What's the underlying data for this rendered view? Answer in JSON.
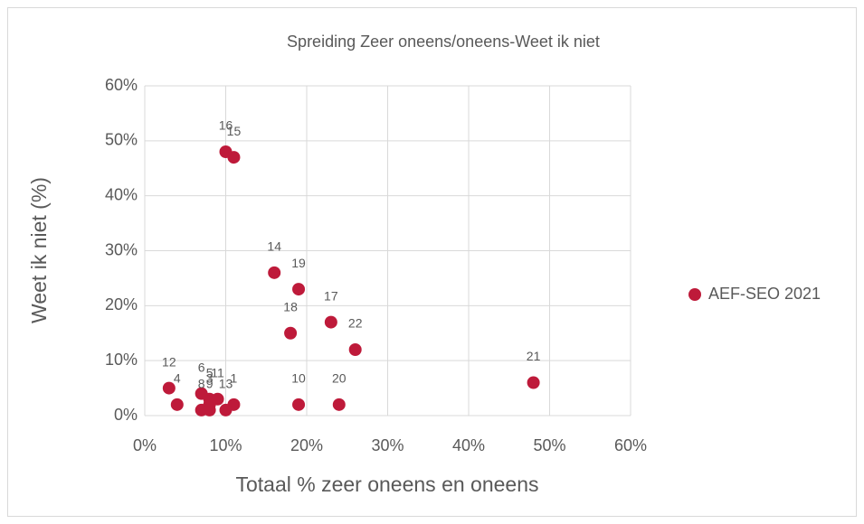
{
  "chart_data": {
    "type": "scatter",
    "title": "Spreiding Zeer oneens/oneens-Weet ik niet",
    "x_label": "Totaal % zeer oneens en oneens",
    "y_label": "Weet ik niet (%)",
    "xlim": [
      0,
      60
    ],
    "ylim": [
      0,
      60
    ],
    "xticks": [
      {
        "value": 0,
        "label": "0%"
      },
      {
        "value": 10,
        "label": "10%"
      },
      {
        "value": 20,
        "label": "20%"
      },
      {
        "value": 30,
        "label": "30%"
      },
      {
        "value": 40,
        "label": "40%"
      },
      {
        "value": 50,
        "label": "50%"
      },
      {
        "value": 60,
        "label": "60%"
      }
    ],
    "yticks": [
      {
        "value": 0,
        "label": "0%"
      },
      {
        "value": 10,
        "label": "10%"
      },
      {
        "value": 20,
        "label": "20%"
      },
      {
        "value": 30,
        "label": "30%"
      },
      {
        "value": 40,
        "label": "40%"
      },
      {
        "value": 50,
        "label": "50%"
      },
      {
        "value": 60,
        "label": "60%"
      }
    ],
    "grid": true,
    "legend": "right",
    "series": [
      {
        "name": "AEF-SEO 2021",
        "color": "#be1a3a",
        "labels": [
          "1",
          "3",
          "4",
          "5",
          "6",
          "8",
          "9",
          "10",
          "11",
          "12",
          "13",
          "14",
          "15",
          "16",
          "17",
          "18",
          "19",
          "20",
          "21",
          "22"
        ],
        "x": [
          11,
          8,
          4,
          8,
          7,
          7,
          8,
          19,
          9,
          3,
          10,
          16,
          11,
          10,
          23,
          18,
          19,
          24,
          48,
          26
        ],
        "values": [
          2,
          2,
          2,
          3,
          4,
          1,
          1,
          2,
          3,
          5,
          1,
          26,
          47,
          48,
          17,
          15,
          23,
          2,
          6,
          12
        ]
      }
    ]
  }
}
